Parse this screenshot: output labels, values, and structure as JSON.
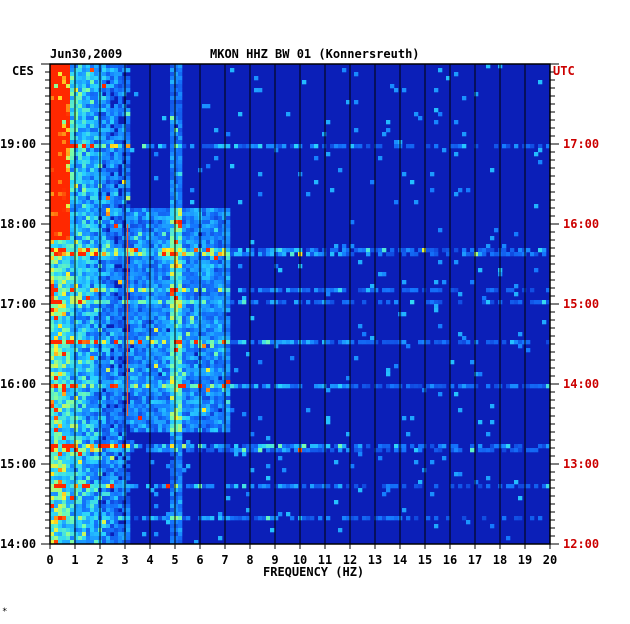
{
  "chart_data": {
    "type": "heatmap",
    "title": "MKON HHZ BW 01 (Konnersreuth)",
    "date": "Jun30,2009",
    "xlabel": "FREQUENCY (HZ)",
    "left_axis_label": "CES",
    "right_axis_label": "UTC",
    "xlim": [
      0,
      20
    ],
    "x_ticks": [
      "0",
      "1",
      "2",
      "3",
      "4",
      "5",
      "6",
      "7",
      "8",
      "9",
      "10",
      "11",
      "12",
      "13",
      "14",
      "15",
      "16",
      "17",
      "18",
      "19",
      "20"
    ],
    "left_time_range_hours": [
      14.0,
      20.0
    ],
    "left_ticks": [
      "14:00",
      "15:00",
      "16:00",
      "17:00",
      "18:00",
      "19:00"
    ],
    "right_ticks": [
      "12:00",
      "13:00",
      "14:00",
      "15:00",
      "16:00",
      "17:00"
    ],
    "colors": {
      "background": "#0b1fb8",
      "low": "#0a1aa0",
      "mid": "#1fa7ff",
      "high": "#5fffb0",
      "peak": "#ff2a00",
      "right_axis": "#cc0000",
      "grid": "#000000"
    },
    "features": [
      {
        "label": "strong broadband energy",
        "freq_range_hz": [
          0,
          3.2
        ]
      },
      {
        "label": "band edge",
        "freq_hz": 7.1
      },
      {
        "label": "narrow line",
        "freq_hz": 3.1
      }
    ],
    "corner_mark": "*"
  }
}
